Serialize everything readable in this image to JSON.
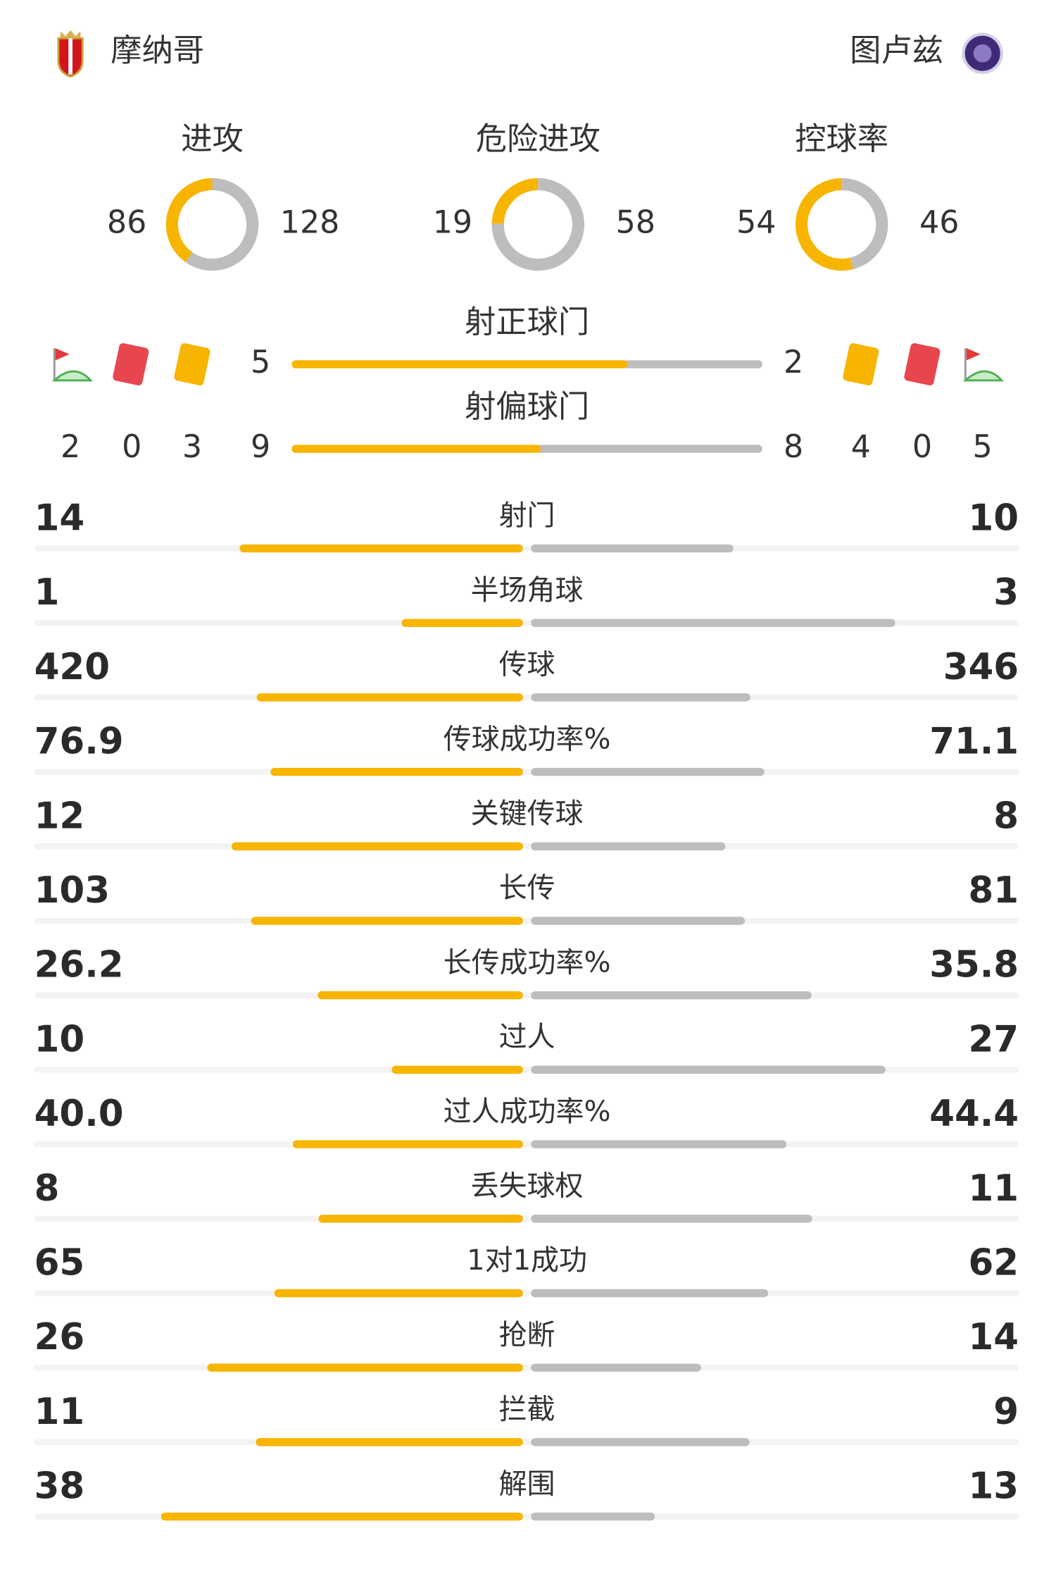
{
  "header": {
    "home": "摩纳哥",
    "away": "图卢兹"
  },
  "donuts": [
    {
      "label": "进攻",
      "home": 86,
      "away": 128
    },
    {
      "label": "危险进攻",
      "home": 19,
      "away": 58
    },
    {
      "label": "控球率",
      "home": 54,
      "away": 46
    }
  ],
  "bars": [
    {
      "label": "射正球门",
      "home": 5,
      "away": 2
    },
    {
      "label": "射偏球门",
      "home": 9,
      "away": 8
    }
  ],
  "cards": {
    "home": {
      "corners": 2,
      "red": 0,
      "yellow": 3
    },
    "away": {
      "yellow": 4,
      "red": 0,
      "corners": 5
    }
  },
  "stats": [
    {
      "label": "射门",
      "home": 14,
      "away": 10
    },
    {
      "label": "半场角球",
      "home": 1,
      "away": 3
    },
    {
      "label": "传球",
      "home": 420,
      "away": 346
    },
    {
      "label": "传球成功率%",
      "home": 76.9,
      "away": 71.1
    },
    {
      "label": "关键传球",
      "home": 12,
      "away": 8
    },
    {
      "label": "长传",
      "home": 103,
      "away": 81
    },
    {
      "label": "长传成功率%",
      "home": 26.2,
      "away": 35.8
    },
    {
      "label": "过人",
      "home": 10,
      "away": 27
    },
    {
      "label": "过人成功率%",
      "home": 40,
      "home_label": "40.0",
      "away": 44.4
    },
    {
      "label": "丢失球权",
      "home": 8,
      "away": 11
    },
    {
      "label": "1对1成功",
      "home": 65,
      "away": 62
    },
    {
      "label": "抢断",
      "home": 26,
      "away": 14
    },
    {
      "label": "拦截",
      "home": 11,
      "away": 9
    },
    {
      "label": "解围",
      "home": 38,
      "away": 13
    }
  ]
}
